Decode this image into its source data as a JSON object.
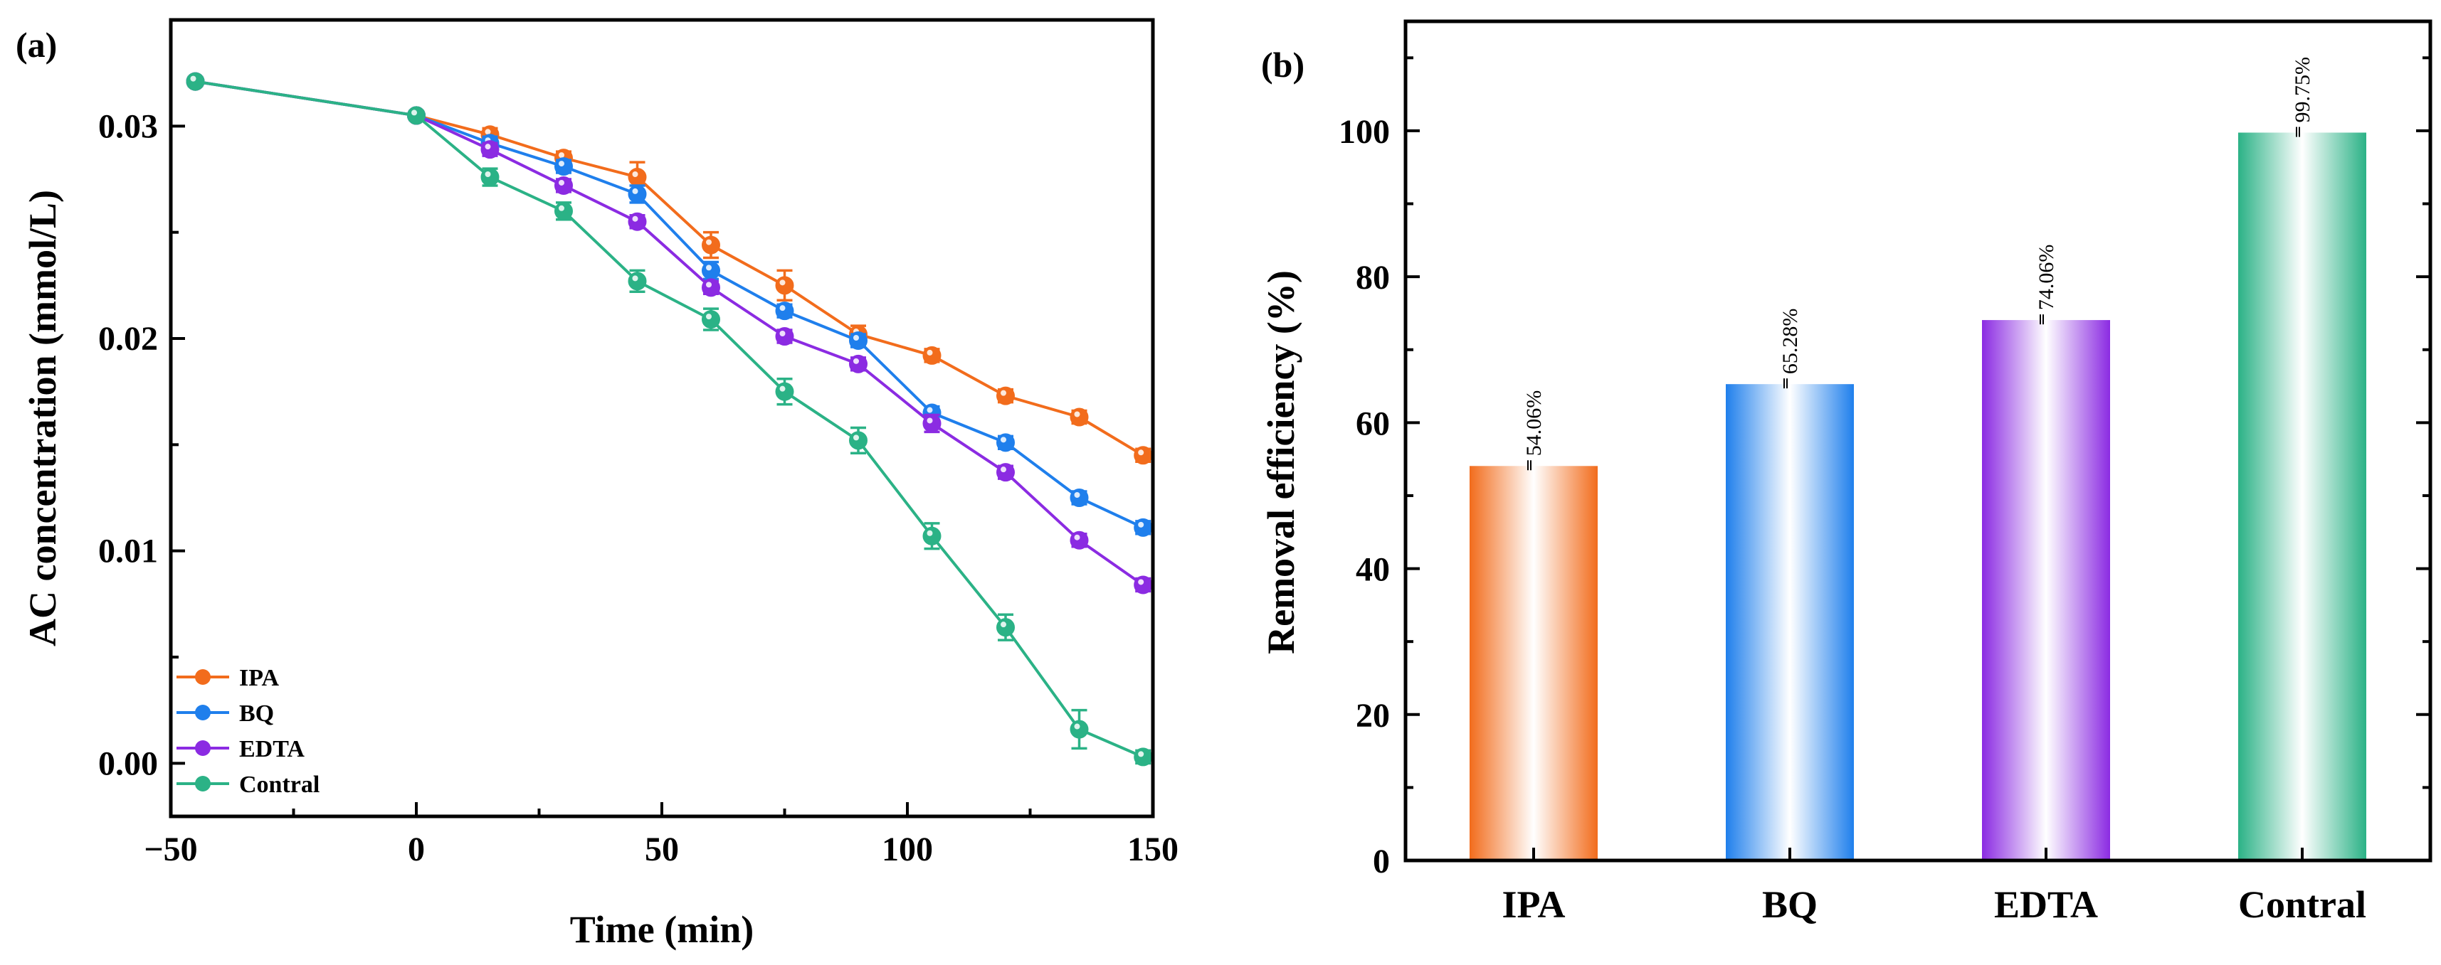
{
  "chart_data": [
    {
      "type": "line",
      "panel": "(a)",
      "xlabel": "Time (min)",
      "ylabel": "AC concentration (mmol/L)",
      "xlim": [
        -50,
        150
      ],
      "ylim": [
        -0.0025,
        0.035
      ],
      "xticks": [
        -50,
        0,
        50,
        100,
        150
      ],
      "xtick_labels": [
        "−50",
        "0",
        "50",
        "100",
        "150"
      ],
      "yticks": [
        0.0,
        0.01,
        0.02,
        0.03
      ],
      "ytick_labels": [
        "0.00",
        "0.01",
        "0.02",
        "0.03"
      ],
      "legend_position": "bottom-left",
      "series": [
        {
          "name": "IPA",
          "color": "#f26c1c",
          "x": [
            -45,
            0,
            15,
            30,
            45,
            60,
            75,
            90,
            105,
            120,
            135,
            148
          ],
          "y": [
            0.0321,
            0.0305,
            0.0296,
            0.0285,
            0.0276,
            0.0244,
            0.0225,
            0.0202,
            0.0192,
            0.0173,
            0.0163,
            0.0145
          ],
          "err": [
            0.0002,
            0.0002,
            0.0003,
            0.0003,
            0.0007,
            0.0006,
            0.0007,
            0.0004,
            0.0003,
            0.0003,
            0.0003,
            0.0003
          ]
        },
        {
          "name": "BQ",
          "color": "#1f7fec",
          "x": [
            -45,
            0,
            15,
            30,
            45,
            60,
            75,
            90,
            105,
            120,
            135,
            148
          ],
          "y": [
            0.0321,
            0.0305,
            0.0292,
            0.0281,
            0.0268,
            0.0232,
            0.0213,
            0.0199,
            0.0165,
            0.0151,
            0.0125,
            0.0111
          ],
          "err": [
            0.0002,
            0.0002,
            0.0003,
            0.0003,
            0.0004,
            0.0004,
            0.0003,
            0.0003,
            0.0003,
            0.0003,
            0.0003,
            0.0003
          ]
        },
        {
          "name": "EDTA",
          "color": "#8b2be2",
          "x": [
            -45,
            0,
            15,
            30,
            45,
            60,
            75,
            90,
            105,
            120,
            135,
            148
          ],
          "y": [
            0.0321,
            0.0305,
            0.0289,
            0.0272,
            0.0255,
            0.0224,
            0.0201,
            0.0188,
            0.016,
            0.0137,
            0.0105,
            0.0084
          ],
          "err": [
            0.0002,
            0.0002,
            0.0003,
            0.0003,
            0.0003,
            0.0003,
            0.0003,
            0.0003,
            0.0004,
            0.0003,
            0.0003,
            0.0003
          ]
        },
        {
          "name": "Contral",
          "color": "#2bb286",
          "x": [
            -45,
            0,
            15,
            30,
            45,
            60,
            75,
            90,
            105,
            120,
            135,
            148
          ],
          "y": [
            0.0321,
            0.0305,
            0.0276,
            0.026,
            0.0227,
            0.0209,
            0.0175,
            0.0152,
            0.0107,
            0.0064,
            0.0016,
            0.0003
          ],
          "err": [
            0.0002,
            0.0002,
            0.0004,
            0.0004,
            0.0005,
            0.0005,
            0.0006,
            0.0006,
            0.0006,
            0.0006,
            0.0009,
            0.0003
          ]
        }
      ]
    },
    {
      "type": "bar",
      "panel": "(b)",
      "xlabel": "",
      "ylabel": "Removal efficiency (%)",
      "ylim": [
        0,
        115
      ],
      "yticks": [
        0,
        20,
        40,
        60,
        80,
        100
      ],
      "ytick_labels": [
        "0",
        "20",
        "40",
        "60",
        "80",
        "100"
      ],
      "categories": [
        "IPA",
        "BQ",
        "EDTA",
        "Contral"
      ],
      "values": [
        54.06,
        65.28,
        74.06,
        99.75
      ],
      "data_labels": [
        "54.06%",
        "65.28%",
        "74.06%",
        "99.75%"
      ],
      "colors": [
        "#f26c1c",
        "#1f7fec",
        "#8b2be2",
        "#2bb286"
      ]
    }
  ]
}
